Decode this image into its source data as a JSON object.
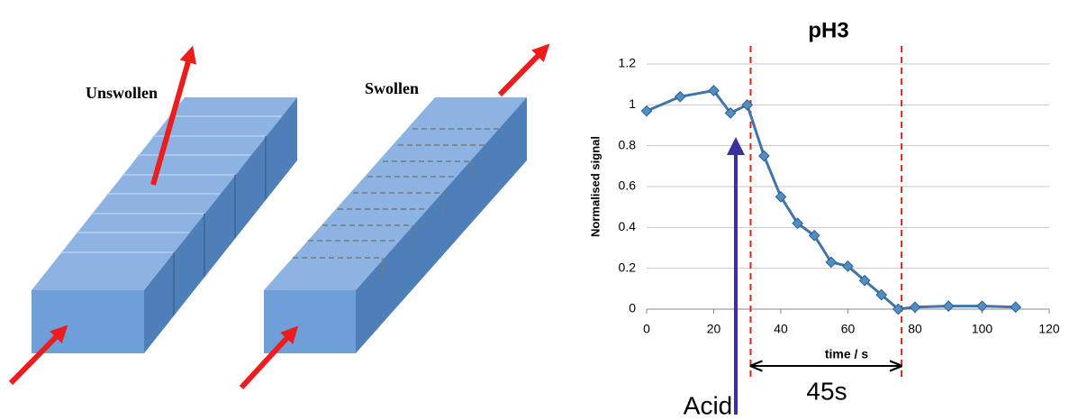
{
  "diagram": {
    "labels": [
      "Unswollen",
      "Swollen"
    ]
  },
  "chart_data": {
    "type": "line",
    "title": "pH3",
    "x_label": "time / s",
    "y_label": "Normalised signal",
    "x": [
      0,
      10,
      20,
      25,
      30,
      35,
      40,
      45,
      50,
      55,
      60,
      65,
      70,
      75,
      80,
      90,
      100,
      110
    ],
    "series": [
      {
        "name": "pH3",
        "color": "#3f75a8",
        "values": [
          0.97,
          1.04,
          1.07,
          0.96,
          1.0,
          0.75,
          0.55,
          0.42,
          0.36,
          0.23,
          0.21,
          0.14,
          0.07,
          0.0,
          0.01,
          0.015,
          0.015,
          0.01
        ]
      }
    ],
    "xlim": [
      0,
      120
    ],
    "xticks": [
      0,
      20,
      40,
      60,
      80,
      100,
      120
    ],
    "ylim": [
      0,
      1.2
    ],
    "yticks": [
      0,
      0.2,
      0.4,
      0.6,
      0.8,
      1,
      1.2
    ],
    "grid": true,
    "vlines": [
      31,
      76
    ],
    "annotations": [
      "Acid",
      "45s"
    ]
  }
}
